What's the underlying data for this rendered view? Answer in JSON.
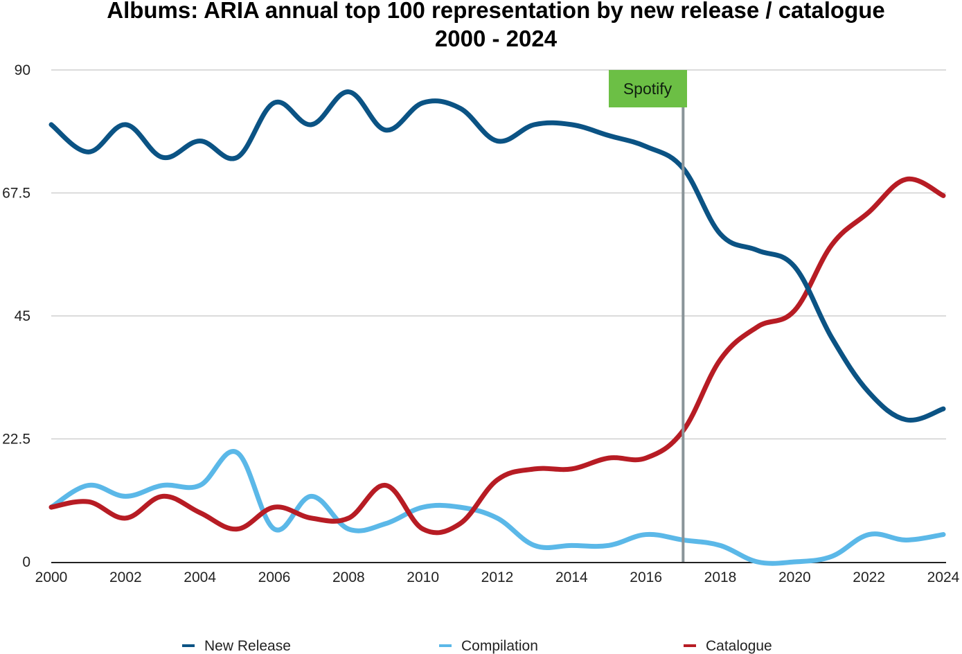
{
  "chart_data": {
    "type": "line",
    "title": "Albums: ARIA annual top 100 representation by new release / catalogue",
    "subtitle": "2000 - 2024",
    "xlabel": "",
    "ylabel": "",
    "x": [
      2000,
      2001,
      2002,
      2003,
      2004,
      2005,
      2006,
      2007,
      2008,
      2009,
      2010,
      2011,
      2012,
      2013,
      2014,
      2015,
      2016,
      2017,
      2018,
      2019,
      2020,
      2021,
      2022,
      2023,
      2024
    ],
    "x_ticks": [
      "2000",
      "2002",
      "2004",
      "2006",
      "2008",
      "2010",
      "2012",
      "2014",
      "2016",
      "2018",
      "2020",
      "2022",
      "2024"
    ],
    "y_ticks": [
      "0",
      "22.5",
      "45",
      "67.5",
      "90"
    ],
    "ylim": [
      0,
      90
    ],
    "xlim": [
      2000,
      2024
    ],
    "grid": true,
    "smooth": true,
    "legend_position": "bottom",
    "series": [
      {
        "name": "New Release",
        "color": "#0b5384",
        "values": [
          80,
          75,
          80,
          74,
          77,
          74,
          84,
          80,
          86,
          79,
          84,
          83,
          77,
          80,
          80,
          78,
          76,
          72,
          60,
          57,
          54,
          41,
          31,
          26,
          28
        ]
      },
      {
        "name": "Compilation",
        "color": "#5bb8e8",
        "values": [
          10,
          14,
          12,
          14,
          14,
          20,
          6,
          12,
          6,
          7,
          10,
          10,
          8,
          3,
          3,
          3,
          5,
          4,
          3,
          0,
          0,
          1,
          5,
          4,
          5
        ]
      },
      {
        "name": "Catalogue",
        "color": "#b71c24",
        "values": [
          10,
          11,
          8,
          12,
          9,
          6,
          10,
          8,
          8,
          14,
          6,
          7,
          15,
          17,
          17,
          19,
          19,
          24,
          37,
          43,
          46,
          58,
          64,
          70,
          67
        ]
      }
    ],
    "annotations": [
      {
        "label": "Spotify",
        "x": 2017,
        "box_color": "#6cbf45",
        "line_color": "#8a9499"
      }
    ]
  }
}
